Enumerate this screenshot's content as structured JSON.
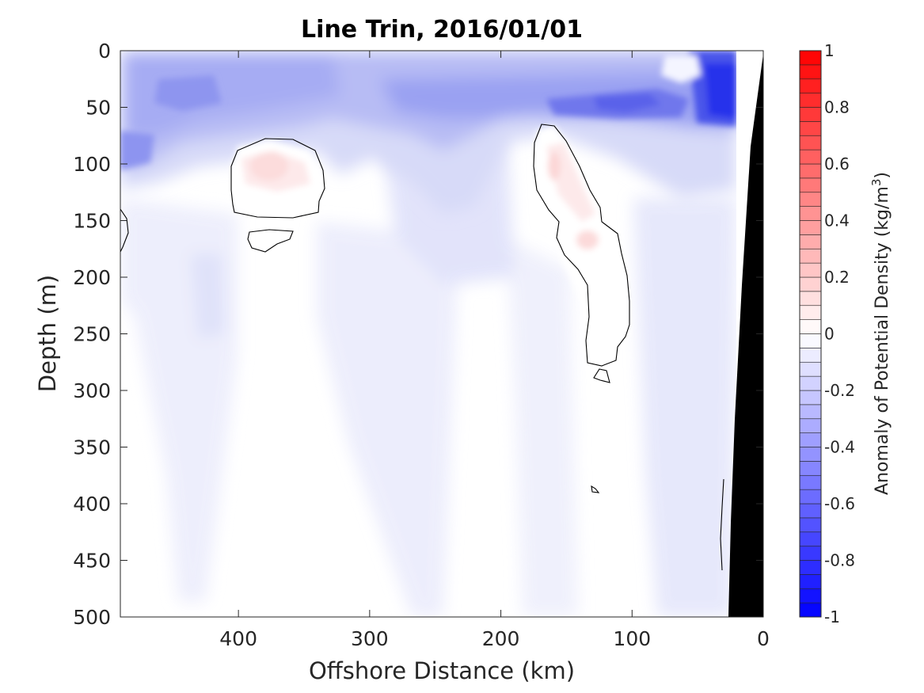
{
  "chart_data": {
    "type": "heatmap",
    "title": "Line Trin, 2016/01/01",
    "xlabel": "Offshore Distance (km)",
    "ylabel": "Depth (m)",
    "xlim": [
      490,
      0
    ],
    "ylim": [
      0,
      500
    ],
    "x_ticks": [
      400,
      300,
      200,
      100,
      0
    ],
    "y_ticks": [
      0,
      50,
      100,
      150,
      200,
      250,
      300,
      350,
      400,
      450,
      500
    ],
    "colorbar": {
      "label": "Anomaly of Potential Density (kg/m",
      "label_superscript": "3",
      "label_suffix": ")",
      "range": [
        -1,
        1
      ],
      "ticks": [
        1,
        0.8,
        0.6,
        0.4,
        0.2,
        0,
        -0.2,
        -0.4,
        -0.6,
        -0.8,
        -1
      ],
      "levels": 40,
      "colors": {
        "negative": "#0000ff",
        "zero": "#ffffff",
        "positive": "#ff0000"
      }
    },
    "contour_level": 0,
    "contour_color": "#000000",
    "bathymetry_color": "#000000",
    "features": [
      {
        "name": "surface negative anomaly layer",
        "x": [
          490,
          22
        ],
        "depth": [
          0,
          120
        ],
        "min_value": -0.8
      },
      {
        "name": "positive eddy",
        "x_center": 375,
        "depth_center": 105,
        "peak_value": 0.15
      },
      {
        "name": "positive filament",
        "x_center": 150,
        "depth_center": 150,
        "peak_value": 0.15
      }
    ]
  }
}
